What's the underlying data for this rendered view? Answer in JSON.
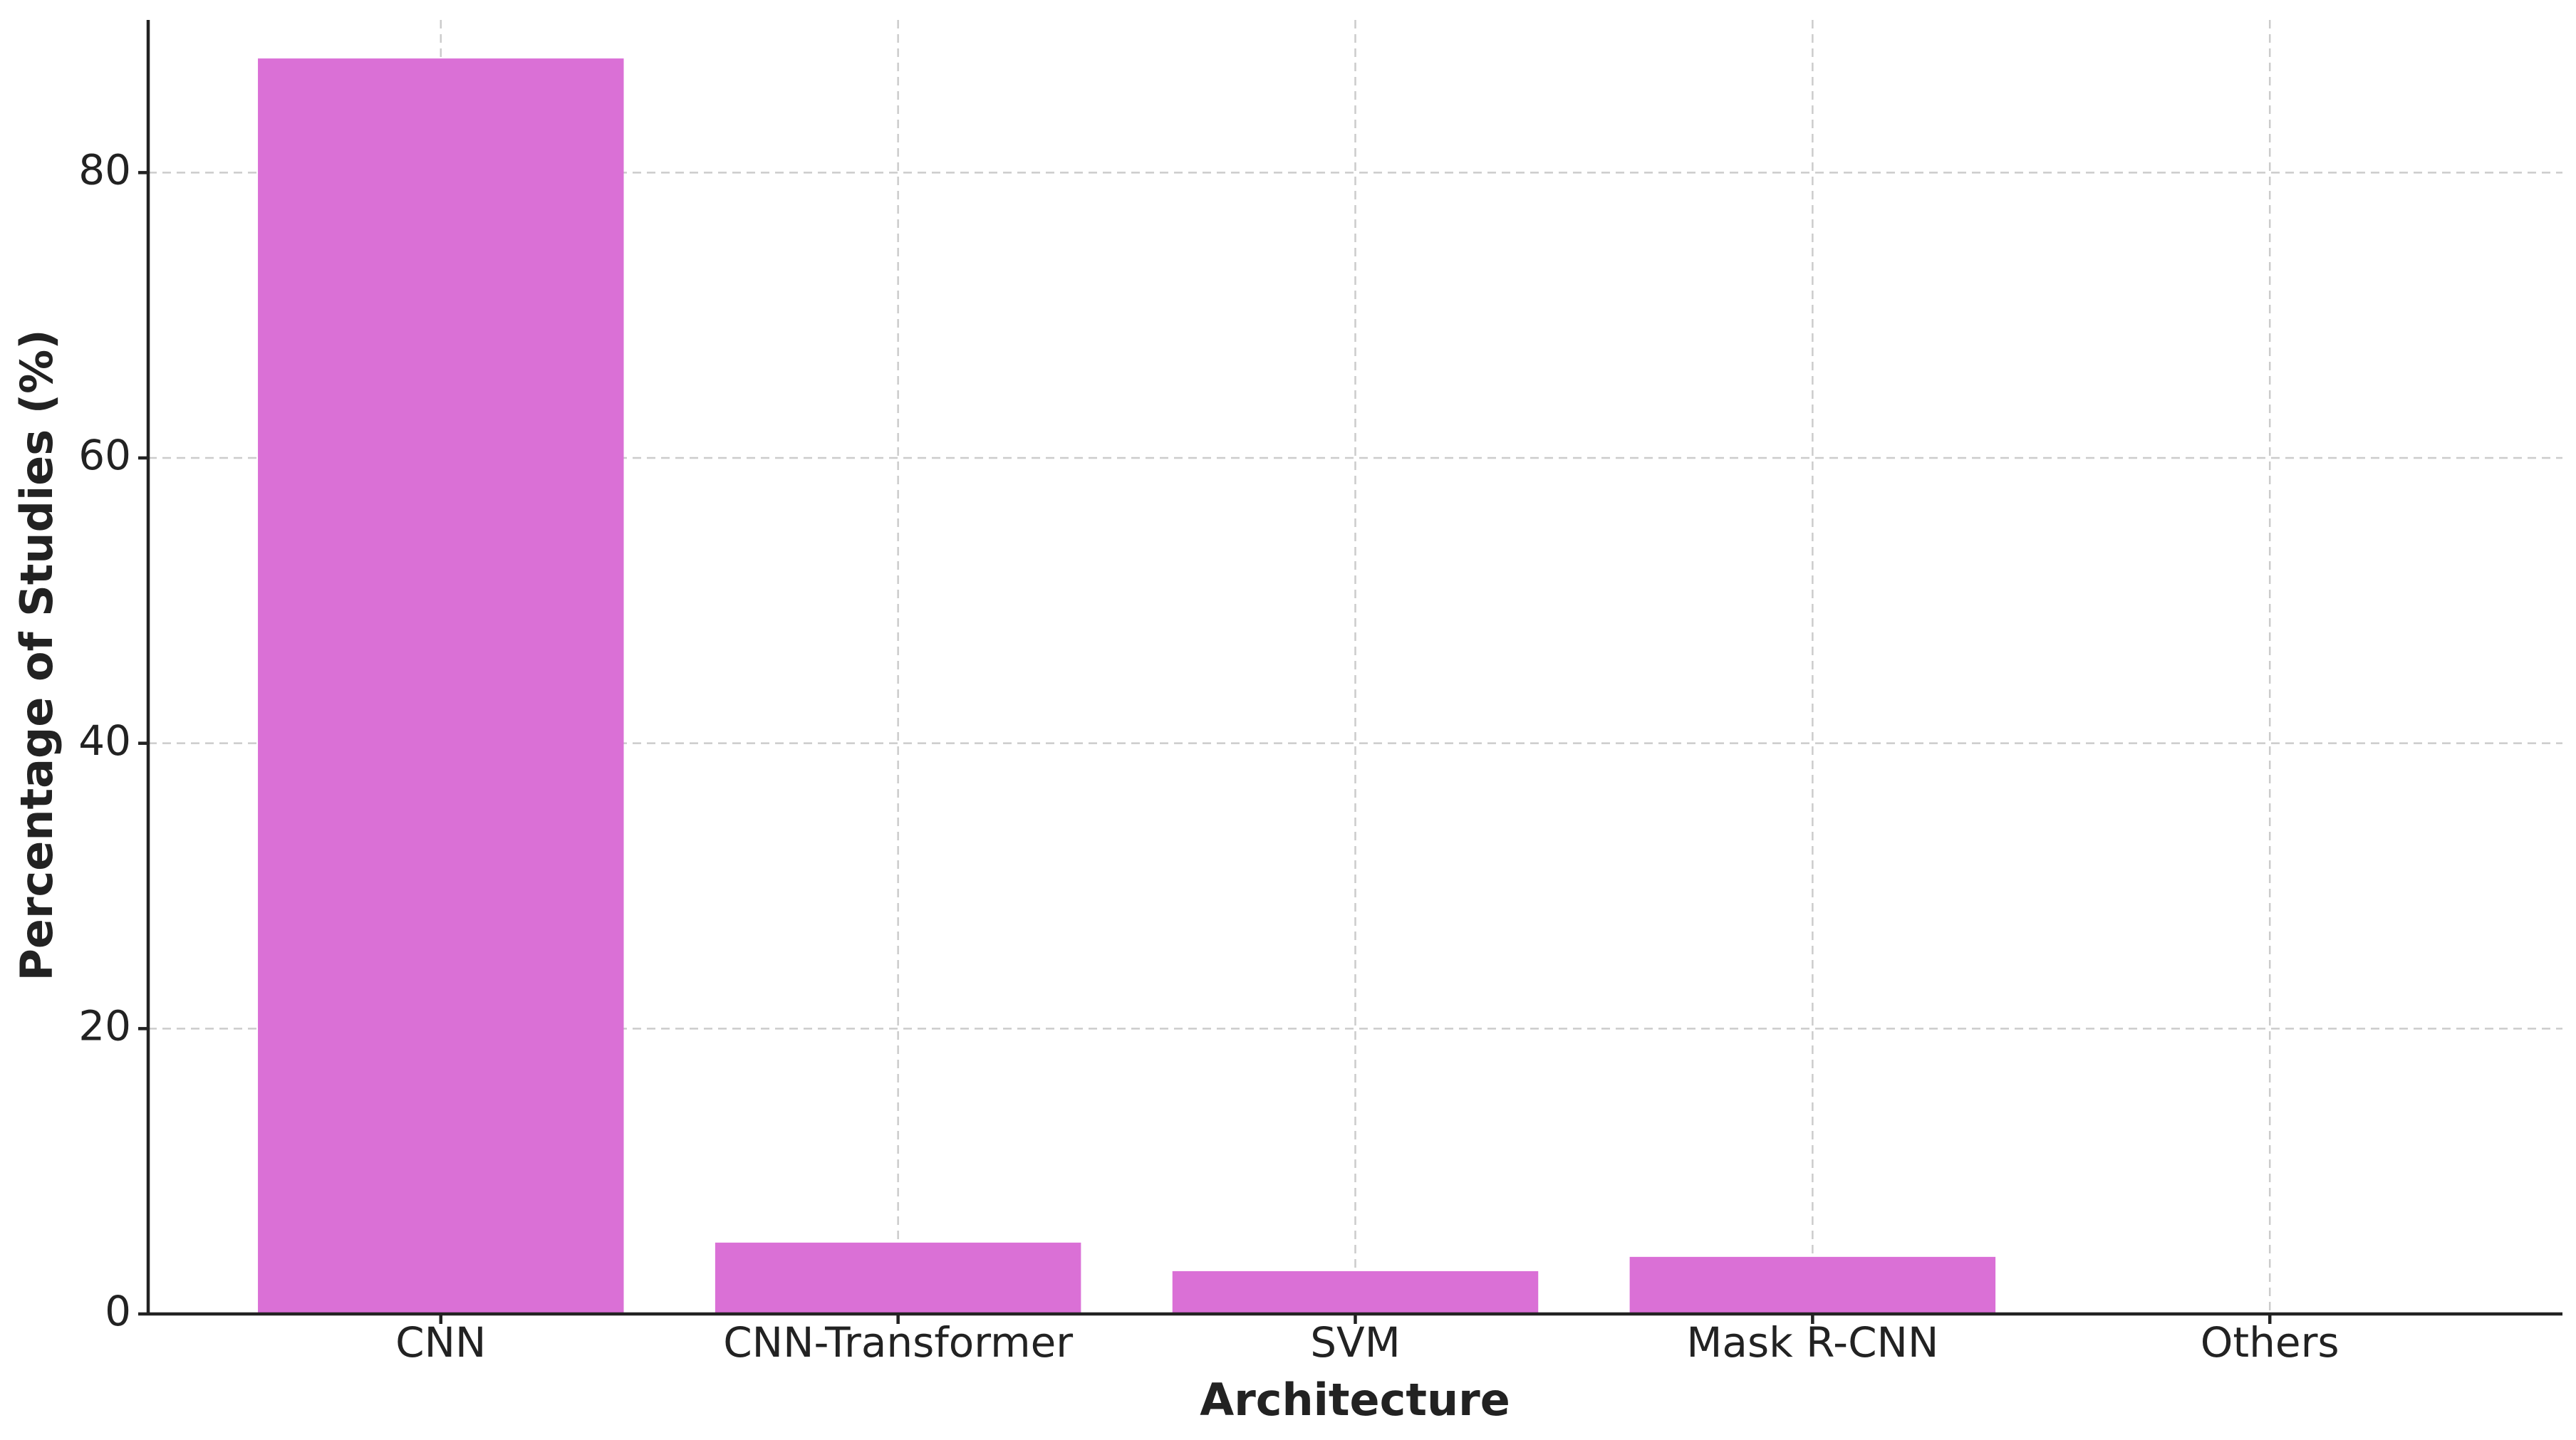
{
  "chart_data": {
    "type": "bar",
    "x_label": "Architecture",
    "y_label": "Percentage of Studies (%)",
    "categories": [
      "CNN",
      "CNN-Transformer",
      "SVM",
      "Mask R-CNN",
      "Others"
    ],
    "values": [
      88,
      5,
      3,
      4,
      0
    ],
    "color": "#da70d6",
    "ylim": [
      0,
      90.7
    ],
    "yticks": [
      0,
      20,
      40,
      60,
      80
    ],
    "grid": true
  }
}
